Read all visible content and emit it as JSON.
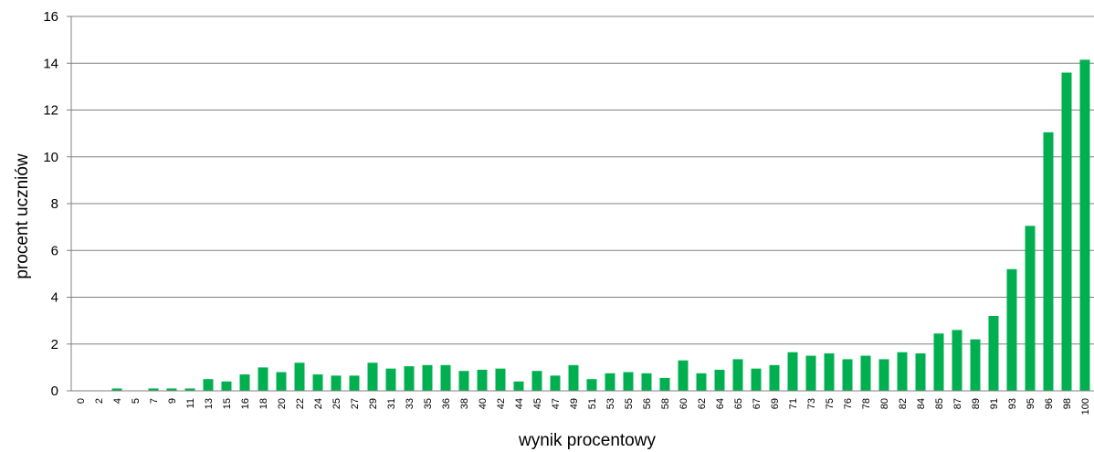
{
  "chart_data": {
    "type": "bar",
    "xlabel": "wynik procentowy",
    "ylabel": "procent uczniów",
    "ylim": [
      0,
      16
    ],
    "yticks": [
      "0",
      "2",
      "4",
      "6",
      "8",
      "10",
      "12",
      "14",
      "16"
    ],
    "grid": true,
    "bar_color": "#00b050",
    "categories": [
      "0",
      "2",
      "4",
      "5",
      "7",
      "9",
      "11",
      "13",
      "15",
      "16",
      "18",
      "20",
      "22",
      "24",
      "25",
      "27",
      "29",
      "31",
      "33",
      "35",
      "36",
      "38",
      "40",
      "42",
      "44",
      "45",
      "47",
      "49",
      "51",
      "53",
      "55",
      "56",
      "58",
      "60",
      "62",
      "64",
      "65",
      "67",
      "69",
      "71",
      "73",
      "75",
      "76",
      "78",
      "80",
      "82",
      "84",
      "85",
      "87",
      "89",
      "91",
      "93",
      "95",
      "96",
      "98",
      "100"
    ],
    "values": [
      0,
      0,
      0.1,
      0,
      0.1,
      0.1,
      0.1,
      0.5,
      0.4,
      0.7,
      1.0,
      0.8,
      1.2,
      0.7,
      0.65,
      0.65,
      1.2,
      0.95,
      1.05,
      1.1,
      1.1,
      0.85,
      0.9,
      0.95,
      0.4,
      0.85,
      0.65,
      1.1,
      0.5,
      0.75,
      0.8,
      0.75,
      0.55,
      1.3,
      0.75,
      0.9,
      1.35,
      0.95,
      1.1,
      1.65,
      1.5,
      1.6,
      1.35,
      1.5,
      1.35,
      1.65,
      1.6,
      2.45,
      2.6,
      2.2,
      3.2,
      5.2,
      7.05,
      11.05,
      13.6,
      14.15
    ]
  }
}
